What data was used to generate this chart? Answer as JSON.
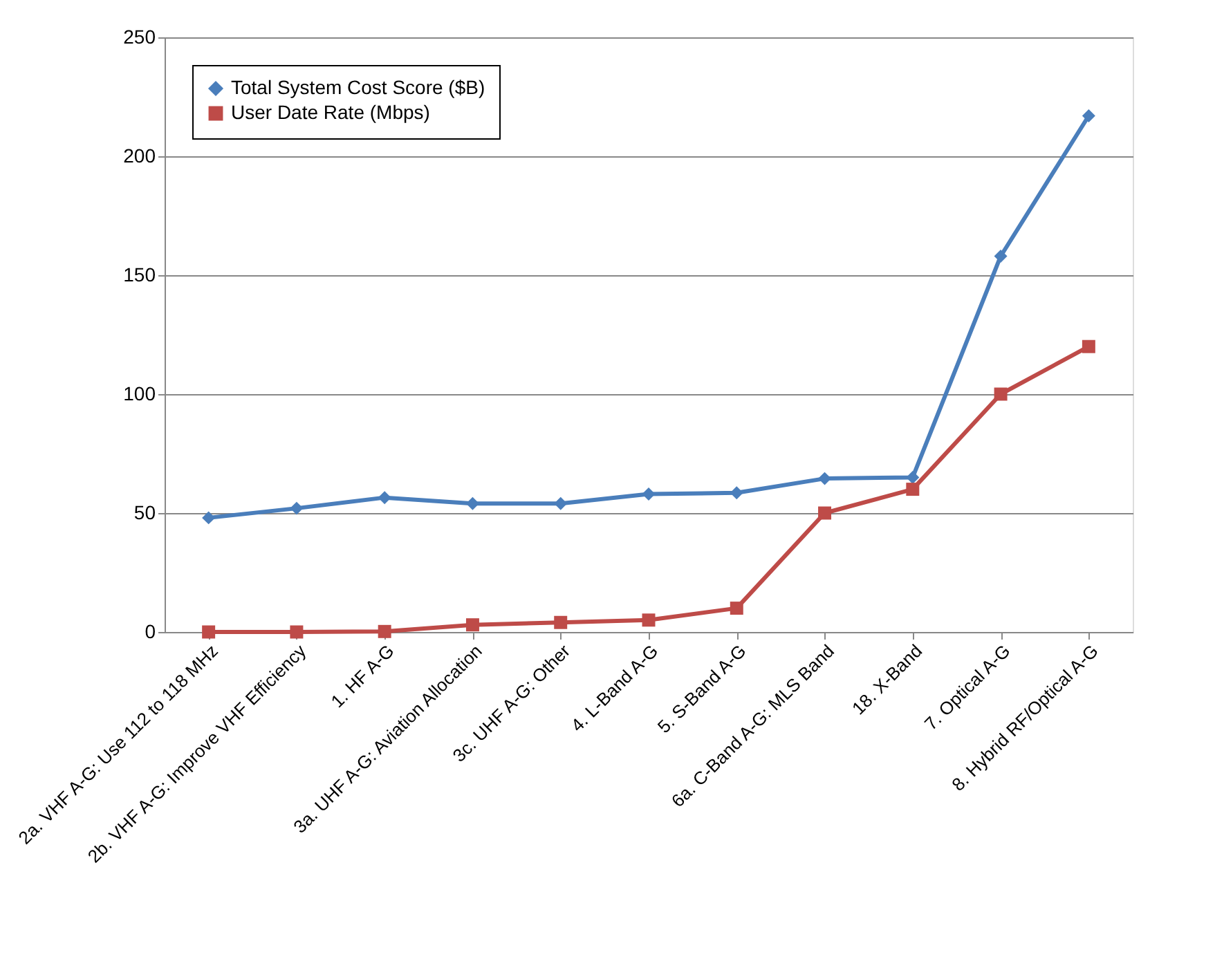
{
  "chart_data": {
    "type": "line",
    "categories": [
      "2a. VHF A-G: Use 112 to 118 MHz",
      "2b. VHF A-G: Improve VHF Efficiency",
      "1. HF A-G",
      "3a. UHF A-G: Aviation Allocation",
      "3c. UHF A-G: Other",
      "4. L-Band A-G",
      "5. S-Band A-G",
      "6a. C-Band A-G: MLS Band",
      "18. X-Band",
      "7. Optical A-G",
      "8. Hybrid RF/Optical A-G"
    ],
    "series": [
      {
        "name": "Total System Cost Score ($B)",
        "color": "#4a7ebb",
        "marker": "diamond",
        "values": [
          48,
          52,
          56.5,
          54,
          54,
          58,
          58.5,
          64.5,
          65,
          158,
          217
        ]
      },
      {
        "name": "User Date Rate (Mbps)",
        "color": "#be4b48",
        "marker": "square",
        "values": [
          0,
          0,
          0.2,
          3,
          4,
          5,
          10,
          50,
          60,
          100,
          120
        ]
      }
    ],
    "ylim": [
      0,
      250
    ],
    "yticks": [
      0,
      50,
      100,
      150,
      200,
      250
    ],
    "grid": "y",
    "legend": "top left",
    "line_style": "solid"
  }
}
